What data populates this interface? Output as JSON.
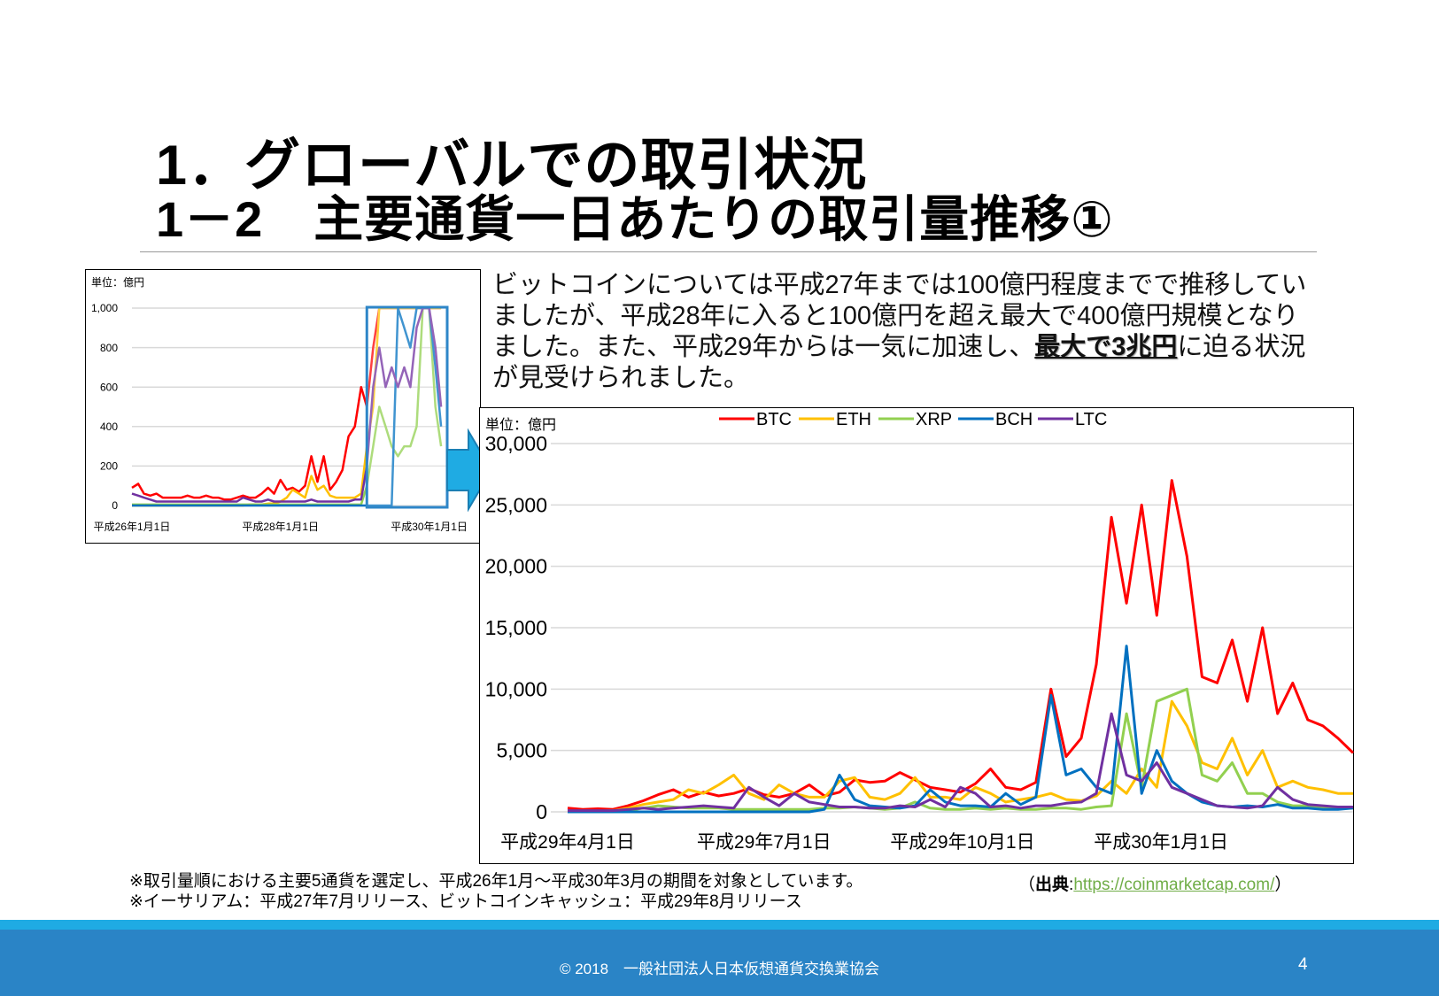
{
  "header": {
    "title": "1．グローバルでの取引状況",
    "subtitle": "1－2　主要通貨一日あたりの取引量推移①"
  },
  "description": {
    "lines": [
      "ビットコインについては平成27年までは100億円程度までで推移してい",
      "ましたが、平成28年に入ると100億円を超え最大で400億円規模となり"
    ],
    "line3_pre": "ました。また、平成29年からは一気に加速し、",
    "line3_bold": "最大で3兆円",
    "line3_post": "に迫る状況",
    "line4": "が見受けられました。"
  },
  "colors": {
    "BTC": "#ff0000",
    "ETH": "#ffc000",
    "XRP": "#92d050",
    "BCH": "#0070c0",
    "LTC": "#7030a0",
    "highlight": "#2e86c8",
    "arrow": "#1fabe3",
    "footer": "#2a84c6",
    "stripe": "#1fabe3",
    "link": "#70ad47"
  },
  "chart_data": [
    {
      "type": "line",
      "unit_label": "単位：億円",
      "ylim": [
        0,
        1000
      ],
      "y_ticks": [
        "0",
        "200",
        "400",
        "600",
        "800",
        "1,000"
      ],
      "y_tick_values": [
        0,
        200,
        400,
        600,
        800,
        1000
      ],
      "xlim": [
        "2014-01-01",
        "2018-03-31"
      ],
      "x_ticks": [
        {
          "date": "2014-01-01",
          "label": "平成26年1月1日"
        },
        {
          "date": "2016-01-01",
          "label": "平成28年1月1日"
        },
        {
          "date": "2018-01-01",
          "label": "平成30年1月1日"
        }
      ],
      "grid": true,
      "clipped_at_ylim": true,
      "highlight_range": [
        "2017-03-01",
        "2018-03-31"
      ],
      "x": [
        "2014-01",
        "2014-02",
        "2014-03",
        "2014-04",
        "2014-05",
        "2014-06",
        "2014-07",
        "2014-08",
        "2014-09",
        "2014-10",
        "2014-11",
        "2014-12",
        "2015-01",
        "2015-02",
        "2015-03",
        "2015-04",
        "2015-05",
        "2015-06",
        "2015-07",
        "2015-08",
        "2015-09",
        "2015-10",
        "2015-11",
        "2015-12",
        "2016-01",
        "2016-02",
        "2016-03",
        "2016-04",
        "2016-05",
        "2016-06",
        "2016-07",
        "2016-08",
        "2016-09",
        "2016-10",
        "2016-11",
        "2016-12",
        "2017-01",
        "2017-02",
        "2017-03",
        "2017-04",
        "2017-05",
        "2017-06",
        "2017-07",
        "2017-08",
        "2017-09",
        "2017-10",
        "2017-11",
        "2017-12",
        "2018-01",
        "2018-02",
        "2018-03"
      ],
      "series": [
        {
          "name": "BTC",
          "values": [
            90,
            110,
            60,
            50,
            60,
            40,
            40,
            40,
            40,
            50,
            40,
            40,
            50,
            40,
            40,
            30,
            30,
            40,
            50,
            40,
            40,
            60,
            90,
            60,
            130,
            80,
            90,
            70,
            100,
            250,
            120,
            250,
            80,
            120,
            180,
            350,
            400,
            600,
            500,
            800,
            1000,
            1000,
            1000,
            1000,
            1000,
            1000,
            1000,
            1000,
            1000,
            1000,
            1000
          ]
        },
        {
          "name": "ETH",
          "values": [
            0,
            0,
            0,
            0,
            0,
            0,
            0,
            0,
            0,
            0,
            0,
            0,
            0,
            0,
            0,
            0,
            0,
            0,
            0,
            5,
            5,
            5,
            10,
            10,
            20,
            40,
            80,
            60,
            40,
            150,
            80,
            100,
            50,
            40,
            40,
            40,
            40,
            60,
            300,
            500,
            1000,
            1000,
            1000,
            1000,
            1000,
            1000,
            1000,
            1000,
            1000,
            1000,
            1000
          ]
        },
        {
          "name": "XRP",
          "values": [
            5,
            5,
            5,
            5,
            5,
            5,
            5,
            5,
            5,
            5,
            5,
            5,
            5,
            5,
            5,
            5,
            5,
            5,
            5,
            5,
            5,
            5,
            5,
            5,
            5,
            5,
            5,
            5,
            5,
            5,
            5,
            5,
            5,
            5,
            5,
            5,
            5,
            5,
            100,
            300,
            500,
            400,
            300,
            250,
            300,
            300,
            400,
            1000,
            1000,
            500,
            300
          ]
        },
        {
          "name": "BCH",
          "values": [
            0,
            0,
            0,
            0,
            0,
            0,
            0,
            0,
            0,
            0,
            0,
            0,
            0,
            0,
            0,
            0,
            0,
            0,
            0,
            0,
            0,
            0,
            0,
            0,
            0,
            0,
            0,
            0,
            0,
            0,
            0,
            0,
            0,
            0,
            0,
            0,
            0,
            0,
            0,
            0,
            0,
            0,
            0,
            1000,
            900,
            800,
            1000,
            1000,
            1000,
            700,
            400
          ]
        },
        {
          "name": "LTC",
          "values": [
            60,
            50,
            40,
            30,
            20,
            20,
            20,
            20,
            20,
            20,
            20,
            20,
            20,
            20,
            20,
            20,
            20,
            20,
            40,
            30,
            20,
            20,
            30,
            20,
            20,
            20,
            20,
            20,
            20,
            30,
            20,
            20,
            20,
            20,
            20,
            20,
            30,
            30,
            200,
            600,
            800,
            600,
            700,
            600,
            700,
            600,
            900,
            1000,
            1000,
            800,
            500
          ]
        }
      ]
    },
    {
      "type": "line",
      "unit_label": "単位：億円",
      "ylim": [
        0,
        30000
      ],
      "y_ticks": [
        "0",
        "5,000",
        "10,000",
        "15,000",
        "20,000",
        "25,000",
        "30,000"
      ],
      "y_tick_values": [
        0,
        5000,
        10000,
        15000,
        20000,
        25000,
        30000
      ],
      "xlim": [
        "2017-04-01",
        "2018-03-31"
      ],
      "x_ticks": [
        {
          "date": "2017-04-01",
          "label": "平成29年4月1日"
        },
        {
          "date": "2017-07-01",
          "label": "平成29年7月1日"
        },
        {
          "date": "2017-10-01",
          "label": "平成29年10月1日"
        },
        {
          "date": "2018-01-01",
          "label": "平成30年1月1日"
        }
      ],
      "grid": true,
      "legend": "top",
      "x": [
        "2017-04-01",
        "2017-04-08",
        "2017-04-15",
        "2017-04-22",
        "2017-04-29",
        "2017-05-06",
        "2017-05-13",
        "2017-05-20",
        "2017-05-27",
        "2017-06-03",
        "2017-06-10",
        "2017-06-17",
        "2017-06-24",
        "2017-07-01",
        "2017-07-08",
        "2017-07-15",
        "2017-07-22",
        "2017-07-29",
        "2017-08-05",
        "2017-08-12",
        "2017-08-19",
        "2017-08-26",
        "2017-09-02",
        "2017-09-09",
        "2017-09-16",
        "2017-09-23",
        "2017-09-30",
        "2017-10-07",
        "2017-10-14",
        "2017-10-21",
        "2017-10-28",
        "2017-11-04",
        "2017-11-11",
        "2017-11-18",
        "2017-11-25",
        "2017-12-02",
        "2017-12-09",
        "2017-12-16",
        "2017-12-23",
        "2017-12-30",
        "2018-01-06",
        "2018-01-13",
        "2018-01-20",
        "2018-01-27",
        "2018-02-03",
        "2018-02-10",
        "2018-02-17",
        "2018-02-24",
        "2018-03-03",
        "2018-03-10",
        "2018-03-17",
        "2018-03-24",
        "2018-03-31"
      ],
      "series": [
        {
          "name": "BTC",
          "values": [
            300,
            200,
            250,
            200,
            500,
            900,
            1400,
            1800,
            1200,
            1600,
            1300,
            1500,
            1900,
            1400,
            1200,
            1500,
            2200,
            1300,
            1600,
            2600,
            2400,
            2500,
            3200,
            2600,
            2000,
            1800,
            1600,
            2300,
            3500,
            2000,
            1800,
            2400,
            10000,
            4500,
            6000,
            12000,
            24000,
            17000,
            25000,
            16000,
            27000,
            20800,
            11000,
            10500,
            14000,
            9000,
            15000,
            8000,
            10500,
            7500,
            7000,
            6000,
            4800
          ]
        },
        {
          "name": "ETH",
          "values": [
            0,
            50,
            50,
            100,
            300,
            600,
            800,
            1000,
            1800,
            1500,
            2200,
            3000,
            1500,
            1000,
            2200,
            1500,
            1200,
            1200,
            2500,
            2800,
            1200,
            1000,
            1500,
            2800,
            1200,
            1200,
            1000,
            2000,
            1500,
            800,
            1000,
            1200,
            1500,
            1000,
            900,
            1300,
            2500,
            1500,
            3500,
            2000,
            9000,
            7000,
            4000,
            3500,
            6000,
            3000,
            5000,
            2000,
            2500,
            2000,
            1800,
            1500,
            1500
          ]
        },
        {
          "name": "XRP",
          "values": [
            0,
            0,
            0,
            50,
            100,
            300,
            500,
            400,
            300,
            300,
            300,
            200,
            200,
            200,
            200,
            200,
            200,
            300,
            300,
            400,
            300,
            200,
            300,
            800,
            300,
            200,
            200,
            300,
            200,
            300,
            200,
            200,
            300,
            300,
            200,
            400,
            500,
            8000,
            2000,
            9000,
            9500,
            10000,
            3000,
            2500,
            4000,
            1500,
            1500,
            800,
            500,
            500,
            400,
            300,
            300
          ]
        },
        {
          "name": "BCH",
          "values": [
            0,
            0,
            0,
            0,
            0,
            0,
            0,
            0,
            0,
            0,
            0,
            0,
            0,
            0,
            0,
            0,
            0,
            200,
            3000,
            1000,
            500,
            400,
            300,
            500,
            1800,
            800,
            500,
            500,
            400,
            1500,
            600,
            1200,
            9500,
            3000,
            3500,
            2000,
            1500,
            13500,
            1500,
            5000,
            2500,
            1500,
            800,
            500,
            400,
            500,
            400,
            600,
            300,
            300,
            200,
            200,
            300
          ]
        },
        {
          "name": "LTC",
          "values": [
            100,
            100,
            100,
            100,
            200,
            300,
            200,
            300,
            400,
            500,
            400,
            300,
            2000,
            1200,
            500,
            1500,
            800,
            600,
            400,
            400,
            300,
            300,
            500,
            400,
            1000,
            400,
            2000,
            1500,
            400,
            500,
            300,
            500,
            500,
            700,
            800,
            1500,
            8000,
            3000,
            2500,
            4000,
            2000,
            1500,
            1000,
            500,
            400,
            300,
            500,
            2000,
            1000,
            600,
            500,
            400,
            400
          ]
        }
      ]
    }
  ],
  "notes": {
    "line1": "※取引量順における主要5通貨を選定し、平成26年1月～平成30年3月の期間を対象としています。",
    "line2": "※イーサリアム：平成27年7月リリース、ビットコインキャッシュ：平成29年8月リリース",
    "source_open": "（",
    "source_label": "出典",
    "source_sep": ":",
    "source_link": "https://coinmarketcap.com/",
    "source_close": "）"
  },
  "footer": {
    "copyright": "© 2018　一般社団法人日本仮想通貨交換業協会",
    "page_number": "4"
  }
}
